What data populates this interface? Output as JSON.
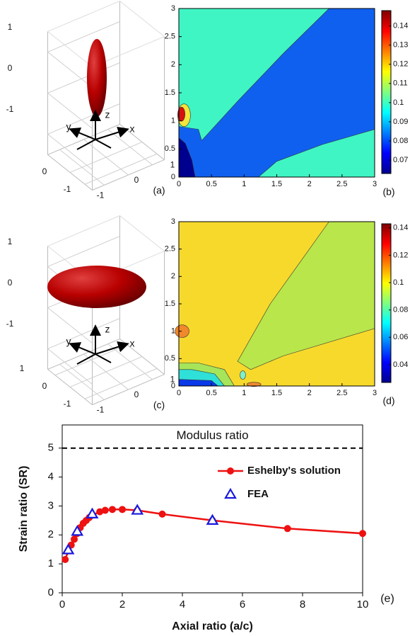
{
  "chart_data": [
    {
      "type": "surface3d",
      "panel_label": "(a)",
      "shape": "prolate",
      "axis_labels": [
        "x",
        "y",
        "z"
      ],
      "xlim": [
        -1.5,
        1.5
      ],
      "ylim": [
        -1.5,
        1.5
      ],
      "zlim": [
        -1.5,
        1.5
      ],
      "xticks": [
        -1,
        0,
        1
      ],
      "yticks": [
        -1,
        0
      ],
      "zticks": [
        -1,
        0,
        1
      ]
    },
    {
      "type": "contour",
      "panel_label": "(b)",
      "xlim": [
        0,
        3
      ],
      "ylim": [
        0,
        3
      ],
      "xticks": [
        0,
        0.5,
        1,
        1.5,
        2,
        2.5,
        3
      ],
      "yticks": [
        0,
        0.5,
        1,
        1.5,
        2,
        2.5,
        3
      ],
      "clim": [
        0.063,
        0.148
      ],
      "cticks": [
        0.07,
        0.08,
        0.09,
        0.1,
        0.11,
        0.12,
        0.13,
        0.14
      ]
    },
    {
      "type": "surface3d",
      "panel_label": "(c)",
      "shape": "oblate",
      "axis_labels": [
        "x",
        "y",
        "z"
      ],
      "xlim": [
        -1.5,
        1.5
      ],
      "ylim": [
        -1.5,
        1.5
      ],
      "zlim": [
        -1.5,
        1.5
      ],
      "xticks": [
        -1,
        0,
        1
      ],
      "yticks": [
        -1,
        0,
        1
      ],
      "zticks": [
        -1,
        0,
        1
      ]
    },
    {
      "type": "contour",
      "panel_label": "(d)",
      "xlim": [
        0,
        3
      ],
      "ylim": [
        0,
        3
      ],
      "xticks": [
        0,
        0.5,
        1,
        1.5,
        2,
        2.5,
        3
      ],
      "yticks": [
        0,
        0.5,
        1,
        1.5,
        2,
        2.5,
        3
      ],
      "clim": [
        0.027,
        0.143
      ],
      "cticks": [
        0.04,
        0.06,
        0.08,
        0.1,
        0.12,
        0.14
      ]
    },
    {
      "type": "line",
      "panel_label": "(e)",
      "x_label": "Axial ratio (a/c)",
      "y_label": "Strain ratio (SR)",
      "xlim": [
        0,
        10
      ],
      "ylim": [
        0,
        5.8
      ],
      "xticks": [
        0,
        2,
        4,
        6,
        8,
        10
      ],
      "yticks": [
        0,
        1,
        2,
        3,
        4,
        5
      ],
      "reference_line": {
        "value": 5,
        "label": "Modulus ratio"
      },
      "legend": "upper right",
      "series": [
        {
          "name": "Eshelby's solution",
          "color": "#ee1111",
          "marker": "circle",
          "line": true,
          "x": [
            0.1,
            0.2,
            0.3,
            0.4,
            0.5,
            0.6,
            0.7,
            0.8,
            0.9,
            1,
            1.25,
            1.43,
            1.67,
            2,
            2.5,
            3.33,
            5,
            7.5,
            10
          ],
          "values": [
            1.15,
            1.45,
            1.65,
            1.85,
            2.05,
            2.25,
            2.4,
            2.5,
            2.6,
            2.68,
            2.8,
            2.85,
            2.88,
            2.88,
            2.85,
            2.72,
            2.5,
            2.22,
            2.05
          ]
        },
        {
          "name": "FEA",
          "color": "#1a1adc",
          "marker": "triangle",
          "line": false,
          "x": [
            0.2,
            0.5,
            1,
            2.5,
            5
          ],
          "values": [
            1.48,
            2.12,
            2.72,
            2.85,
            2.5
          ]
        }
      ]
    }
  ]
}
